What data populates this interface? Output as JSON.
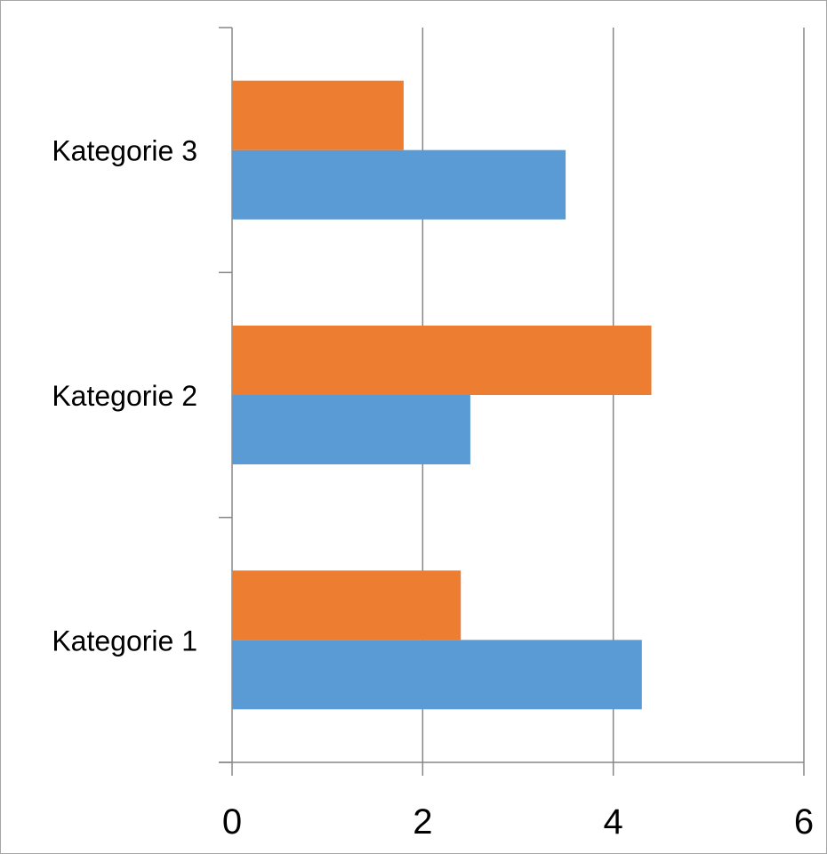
{
  "chart_data": {
    "type": "bar",
    "orientation": "horizontal",
    "title": "",
    "xlabel": "",
    "ylabel": "",
    "categories": [
      "Kategorie 1",
      "Kategorie 2",
      "Kategorie 3"
    ],
    "series": [
      {
        "values": [
          4.3,
          2.5,
          3.5
        ],
        "color": "#5b9bd5"
      },
      {
        "values": [
          2.4,
          4.4,
          1.8
        ],
        "color": "#ed7d31"
      }
    ],
    "xlim": [
      0,
      6
    ],
    "x_ticks": [
      "0",
      "2",
      "4",
      "6"
    ],
    "grid": true,
    "legend": "none"
  }
}
